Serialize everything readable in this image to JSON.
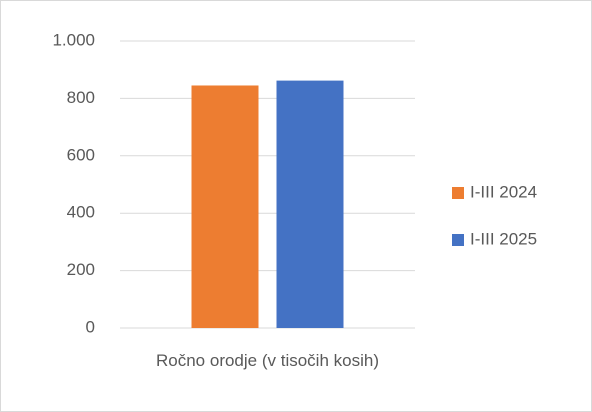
{
  "chart_data": {
    "type": "bar",
    "categories": [
      "Ročno orodje (v tisočih kosih)"
    ],
    "series": [
      {
        "name": "I-III 2024",
        "color": "#ed7d31",
        "values": [
          845
        ]
      },
      {
        "name": "I-III 2025",
        "color": "#4472c4",
        "values": [
          862
        ]
      }
    ],
    "ylim": [
      0,
      1000
    ],
    "yticks": [
      0,
      200,
      400,
      600,
      800,
      {
        "value": 1000,
        "label": "1.000"
      }
    ],
    "grid": true,
    "legend": "right"
  }
}
